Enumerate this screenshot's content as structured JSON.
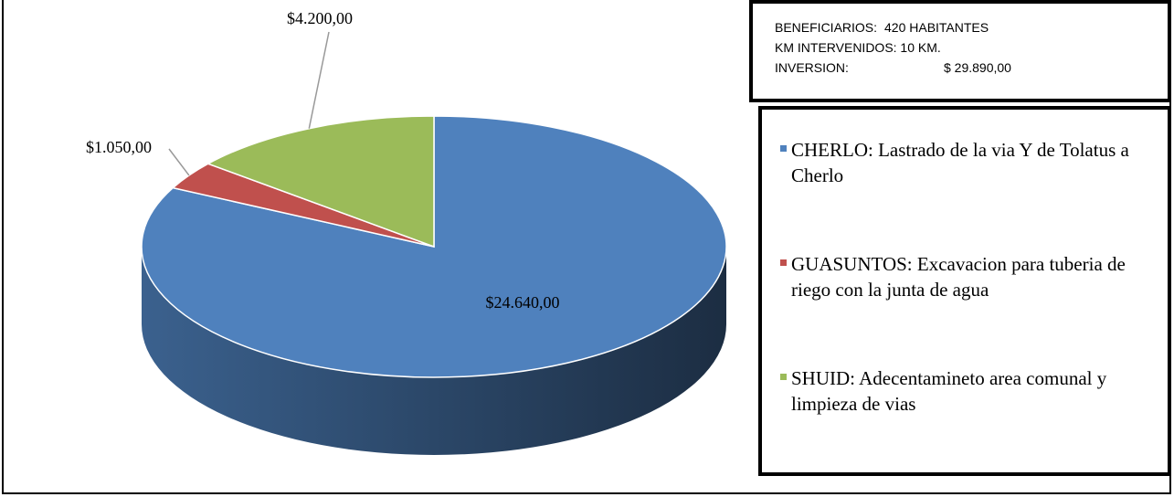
{
  "chart_data": {
    "type": "pie",
    "categories": [
      "CHERLO:   Lastrado de la via Y de Tolatus a Cherlo",
      "GUASUNTOS: Excavacion para tuberia de riego con la junta de agua",
      "SHUID: Adecentamineto area comunal y limpieza de vias"
    ],
    "values": [
      24640,
      1050,
      4200
    ],
    "value_labels": [
      "$24.640,00",
      "$1.050,00",
      "$4.200,00"
    ],
    "colors": [
      "#4f81bd",
      "#c0504d",
      "#9bbb59"
    ],
    "legend": "right",
    "info": [
      [
        "BENEFICIARIOS:",
        "420 HABITANTES"
      ],
      [
        "KM INTERVENIDOS: 10 KM."
      ],
      [
        "INVERSION:",
        "$ 29.890,00"
      ]
    ]
  }
}
